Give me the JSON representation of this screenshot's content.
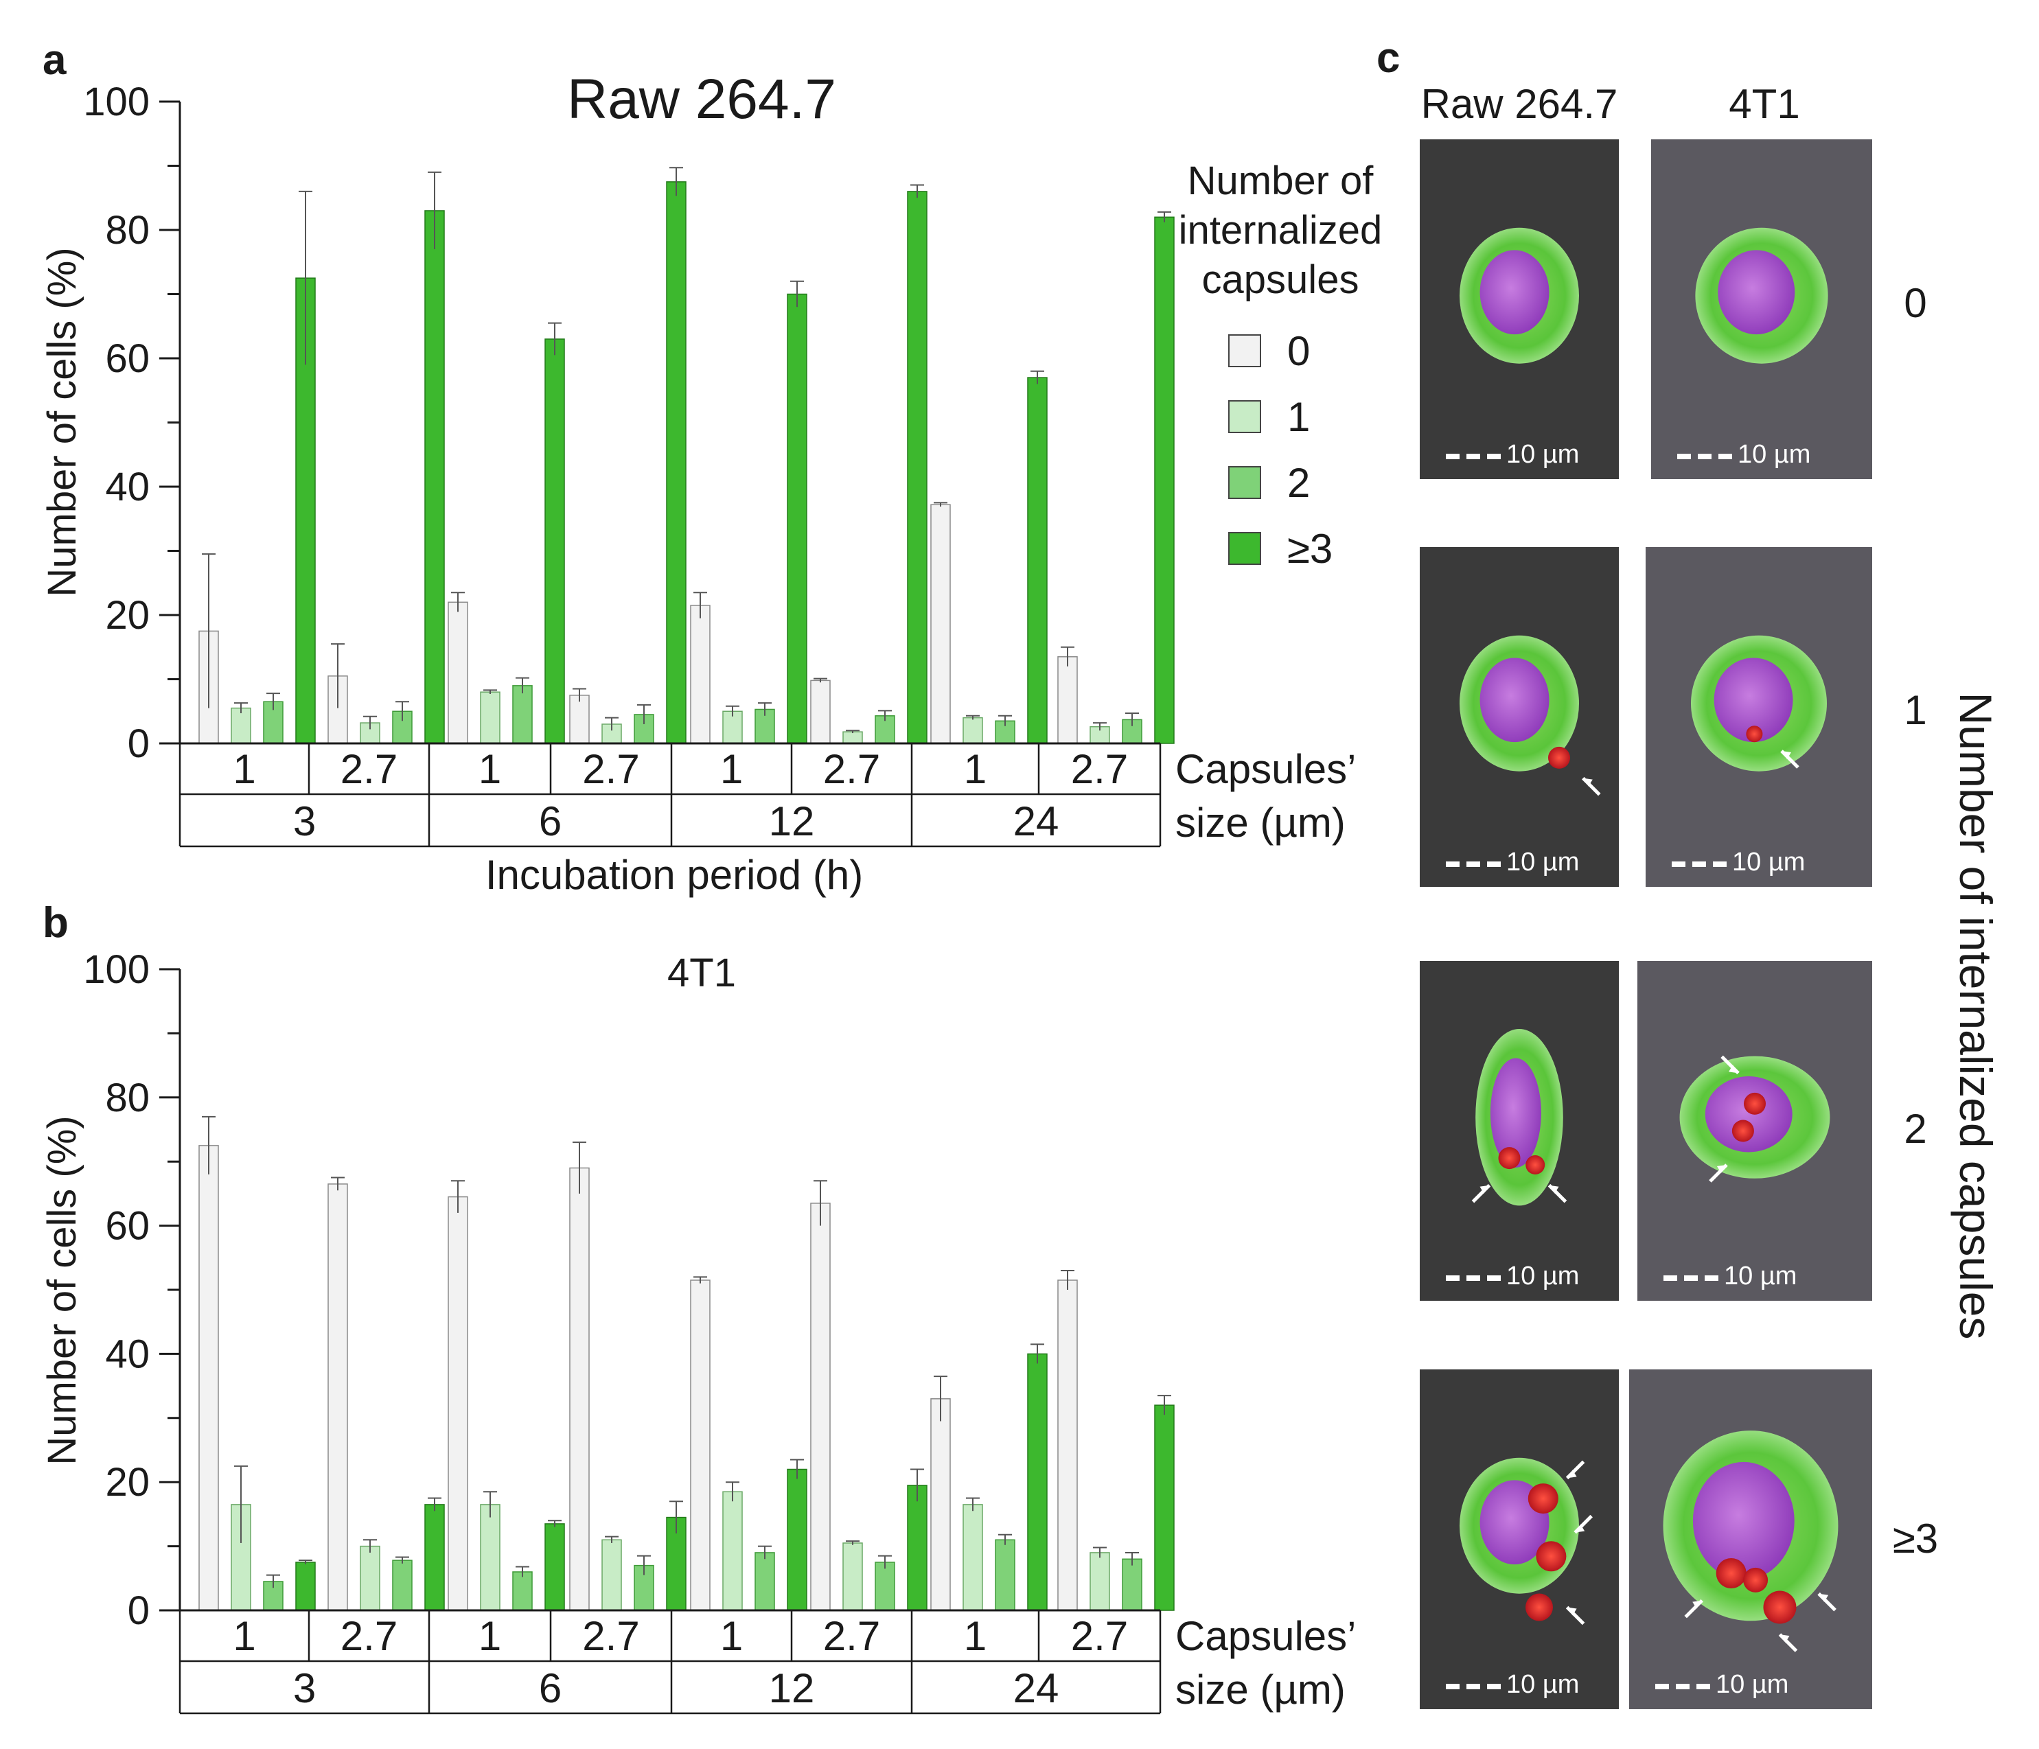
{
  "panel_labels": {
    "a": "a",
    "b": "b",
    "c": "c"
  },
  "colors": {
    "n0": "#f2f2f2",
    "n1": "#c8ecc6",
    "n2": "#7fd278",
    "n3": "#3db82e",
    "axis": "#1a1a1a",
    "scalebar": "#ffffff",
    "arrow": "#ffffff",
    "cell_green": "#5ccc3a",
    "nucleus": "#a347c8",
    "capsule": "#e01e24",
    "bg_raw": "#3a3a3a",
    "bg_4t1": "#5b5960"
  },
  "chart_data": [
    {
      "type": "bar",
      "panel": "a",
      "title": "Raw 264.7",
      "ylabel": "Number of cells (%)",
      "xlabel": "Incubation period (h)",
      "ylim": [
        0,
        100
      ],
      "yticks": [
        "0",
        "20",
        "40",
        "60",
        "80",
        "100"
      ],
      "size_row_label_line1": "Capsules’",
      "size_row_label_line2": "size (µm)",
      "incubation_periods": [
        "3",
        "6",
        "12",
        "24"
      ],
      "capsule_sizes": [
        "1",
        "2.7"
      ],
      "categories": [
        "3h-1",
        "3h-2.7",
        "6h-1",
        "6h-2.7",
        "12h-1",
        "12h-2.7",
        "24h-1",
        "24h-2.7"
      ],
      "series": [
        {
          "name": "0",
          "values": [
            17.5,
            10.5,
            22,
            7.5,
            21.5,
            9.8,
            37.2,
            13.5
          ],
          "errors": [
            12,
            5,
            1.5,
            1,
            2,
            0.3,
            0.3,
            1.5
          ]
        },
        {
          "name": "1",
          "values": [
            5.5,
            3.2,
            8,
            3,
            5,
            1.8,
            4,
            2.6
          ],
          "errors": [
            0.8,
            1,
            0.3,
            1,
            0.8,
            0.2,
            0.3,
            0.6
          ]
        },
        {
          "name": "2",
          "values": [
            6.5,
            5,
            9,
            4.5,
            5.3,
            4.3,
            3.5,
            3.7
          ],
          "errors": [
            1.3,
            1.5,
            1.2,
            1.5,
            1,
            0.8,
            0.8,
            1
          ]
        },
        {
          "name": "≥3",
          "values": [
            72.5,
            83,
            63,
            87.5,
            70,
            86,
            57,
            82
          ],
          "errors": [
            13.5,
            6,
            2.5,
            2.2,
            2,
            1,
            1,
            0.8
          ]
        }
      ]
    },
    {
      "type": "bar",
      "panel": "b",
      "title": "4T1",
      "ylabel": "Number of cells (%)",
      "ylim": [
        0,
        100
      ],
      "yticks": [
        "0",
        "20",
        "40",
        "60",
        "80",
        "100"
      ],
      "size_row_label_line1": "Capsules’",
      "size_row_label_line2": "size (µm)",
      "incubation_periods": [
        "3",
        "6",
        "12",
        "24"
      ],
      "capsule_sizes": [
        "1",
        "2.7"
      ],
      "categories": [
        "3h-1",
        "3h-2.7",
        "6h-1",
        "6h-2.7",
        "12h-1",
        "12h-2.7",
        "24h-1",
        "24h-2.7"
      ],
      "series": [
        {
          "name": "0",
          "values": [
            72.5,
            66.5,
            64.5,
            69,
            51.5,
            63.5,
            33,
            51.5
          ],
          "errors": [
            4.5,
            1,
            2.5,
            4,
            0.5,
            3.5,
            3.5,
            1.5
          ]
        },
        {
          "name": "1",
          "values": [
            16.5,
            10,
            16.5,
            11,
            18.5,
            10.5,
            16.5,
            9
          ],
          "errors": [
            6,
            1,
            2,
            0.5,
            1.5,
            0.3,
            1,
            0.8
          ]
        },
        {
          "name": "2",
          "values": [
            4.5,
            7.8,
            6,
            7,
            9,
            7.5,
            11,
            8
          ],
          "errors": [
            1,
            0.5,
            0.8,
            1.5,
            1,
            1,
            0.8,
            1
          ]
        },
        {
          "name": "≥3",
          "values": [
            7.5,
            16.5,
            13.5,
            14.5,
            22,
            19.5,
            40,
            32
          ],
          "errors": [
            0.3,
            1,
            0.5,
            2.5,
            1.5,
            2.5,
            1.5,
            1.5
          ]
        }
      ]
    }
  ],
  "legend": {
    "title_line1": "Number of",
    "title_line2": "internalized",
    "title_line3": "capsules",
    "items": [
      "0",
      "1",
      "2",
      "≥3"
    ]
  },
  "micrographs": {
    "column_headers": [
      "Raw 264.7",
      "4T1"
    ],
    "side_label": "Number of internalized capsules",
    "row_labels": [
      "0",
      "1",
      "2",
      "≥3"
    ],
    "scale_bar_label": "10 µm"
  }
}
